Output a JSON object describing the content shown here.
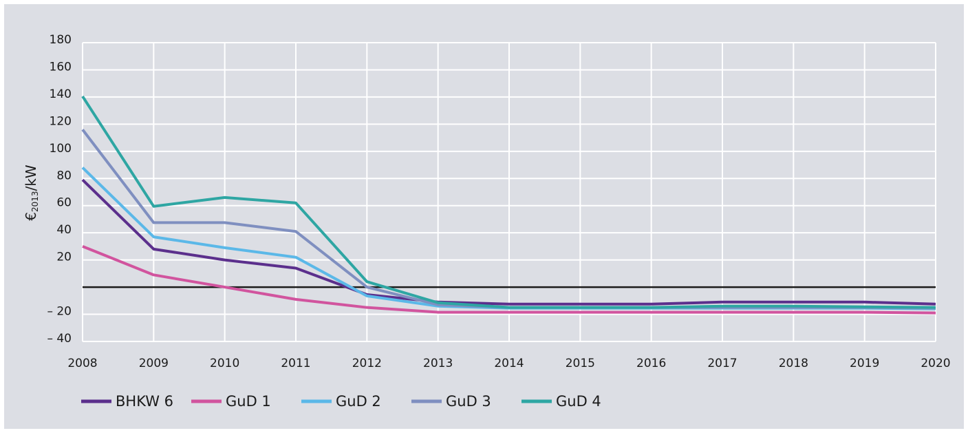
{
  "chart_data": {
    "type": "line",
    "y_label": {
      "symbol": "€",
      "sub": "2013",
      "unit": "/kW"
    },
    "x": [
      2008,
      2009,
      2010,
      2011,
      2012,
      2013,
      2014,
      2015,
      2016,
      2017,
      2018,
      2019,
      2020
    ],
    "xlim": [
      2008,
      2020
    ],
    "xticks": [
      2008,
      2009,
      2010,
      2011,
      2012,
      2013,
      2014,
      2015,
      2016,
      2017,
      2018,
      2019,
      2020
    ],
    "ylim": [
      -40,
      180
    ],
    "yticks": [
      {
        "value": -40,
        "label": "– 40"
      },
      {
        "value": -20,
        "label": "– 20"
      },
      20,
      40,
      60,
      80,
      100,
      120,
      140,
      160,
      180
    ],
    "grid": true,
    "legend": "bottom",
    "series": [
      {
        "name": "BHKW 6",
        "color": "#5b2f8c",
        "values": [
          79,
          28,
          20,
          14,
          -5.5,
          -11,
          -12.5,
          -12.5,
          -12.5,
          -11,
          -11,
          -11,
          -12.5
        ]
      },
      {
        "name": "GuD 1",
        "color": "#d1549e",
        "values": [
          30,
          9,
          0,
          -9,
          -15,
          -18.5,
          -18.5,
          -18.5,
          -18.5,
          -18.5,
          -18.5,
          -18.5,
          -19
        ]
      },
      {
        "name": "GuD 2",
        "color": "#5bb8e8",
        "values": [
          88,
          37,
          29,
          22,
          -6.5,
          -14,
          -15.5,
          -15.5,
          -15.5,
          -15.5,
          -15.5,
          -15.5,
          -16
        ]
      },
      {
        "name": "GuD 3",
        "color": "#7f8fc0",
        "values": [
          116,
          47.5,
          47.5,
          41,
          0,
          -13,
          -15,
          -15,
          -15,
          -15,
          -15,
          -15,
          -15.5
        ]
      },
      {
        "name": "GuD 4",
        "color": "#2ea6a3",
        "values": [
          140.5,
          59.5,
          66,
          62,
          4,
          -11.5,
          -15,
          -15,
          -15,
          -14,
          -14,
          -14.5,
          -15
        ]
      }
    ]
  }
}
